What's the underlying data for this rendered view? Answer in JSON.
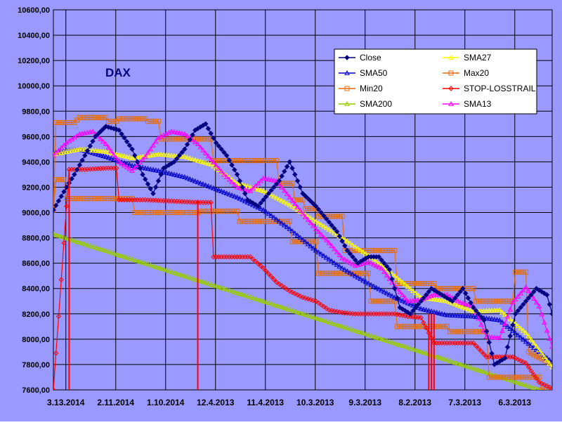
{
  "chart_data": {
    "type": "line",
    "title": "DAX",
    "xlabel": "",
    "ylabel": "",
    "ylim": [
      7600,
      10600
    ],
    "y_ticks": [
      "10600,00",
      "10400,00",
      "10200,00",
      "10000,00",
      "9800,00",
      "9600,00",
      "9400,00",
      "9200,00",
      "9000,00",
      "8800,00",
      "8600,00",
      "8400,00",
      "8200,00",
      "8000,00",
      "7800,00",
      "7600,00"
    ],
    "x_ticks": [
      "3.13.2014",
      "2.11.2014",
      "1.10.2014",
      "12.4.2013",
      "11.4.2013",
      "10.3.2013",
      "9.3.2013",
      "8.2.2013",
      "7.3.2013",
      "6.3.2013"
    ],
    "x_axis_note": "x axis runs from newest (left) to oldest (right); about 190 trading days",
    "grid": true,
    "legend_position": "top-right",
    "colors": {
      "plot_bg": "#9999ff",
      "frame_bg": "#9999ff",
      "grid": "#000000",
      "Close": "#000080",
      "SMA27": "#ffff00",
      "SMA50": "#0000cc",
      "Max20": "#e46c0a",
      "Min20": "#e46c0a",
      "STOP-LOSSTRAIL": "#ff0000",
      "SMA200": "#99cc00",
      "SMA13": "#ff00ff"
    },
    "series": [
      {
        "name": "Close",
        "marker": "diamond",
        "x": [
          0,
          5,
          8,
          12,
          16,
          20,
          25,
          30,
          34,
          38,
          42,
          46,
          50,
          54,
          58,
          62,
          66,
          70,
          74,
          78,
          82,
          86,
          90,
          95,
          100,
          104,
          108,
          112,
          116,
          120,
          124,
          128,
          132,
          136,
          140,
          144,
          148,
          152,
          156,
          160,
          164,
          168,
          172,
          176,
          180,
          184,
          188,
          190
        ],
        "y": [
          9020,
          9200,
          9300,
          9450,
          9600,
          9680,
          9650,
          9500,
          9300,
          9150,
          9350,
          9400,
          9500,
          9650,
          9700,
          9550,
          9450,
          9300,
          9100,
          9050,
          9150,
          9250,
          9400,
          9150,
          9050,
          8950,
          8850,
          8700,
          8600,
          8650,
          8650,
          8550,
          8250,
          8200,
          8300,
          8400,
          8350,
          8300,
          8400,
          8250,
          8150,
          7800,
          7850,
          8200,
          8300,
          8400,
          8350,
          8200
        ]
      },
      {
        "name": "SMA27",
        "marker": "triangle",
        "x": [
          0,
          10,
          20,
          30,
          40,
          50,
          60,
          70,
          80,
          90,
          100,
          110,
          120,
          130,
          140,
          150,
          160,
          170,
          180,
          190
        ],
        "y": [
          9460,
          9500,
          9480,
          9430,
          9460,
          9440,
          9380,
          9230,
          9170,
          9060,
          8930,
          8800,
          8660,
          8500,
          8330,
          8300,
          8220,
          8230,
          8050,
          7780
        ]
      },
      {
        "name": "SMA50",
        "marker": "triangle",
        "x": [
          0,
          10,
          20,
          30,
          40,
          50,
          60,
          70,
          80,
          90,
          100,
          110,
          120,
          130,
          140,
          150,
          160,
          170,
          180,
          190
        ],
        "y": [
          9470,
          9500,
          9440,
          9370,
          9330,
          9280,
          9200,
          9120,
          9020,
          8870,
          8700,
          8560,
          8440,
          8330,
          8240,
          8190,
          8180,
          8150,
          7980,
          7820
        ]
      },
      {
        "name": "Max20",
        "marker": "square",
        "x": [
          0,
          1,
          8,
          9,
          10,
          20,
          21,
          24,
          25,
          35,
          36,
          40,
          41,
          60,
          61,
          85,
          86,
          91,
          92,
          95,
          96,
          100,
          101,
          110,
          111,
          130,
          131,
          145,
          146,
          160,
          161,
          175,
          176,
          180,
          181,
          190
        ],
        "y": [
          9020,
          9710,
          9710,
          9730,
          9750,
          9750,
          9720,
          9720,
          9740,
          9740,
          9720,
          9720,
          9580,
          9580,
          9410,
          9410,
          9230,
          9230,
          9100,
          9100,
          9030,
          9030,
          8970,
          8970,
          8700,
          8700,
          8440,
          8440,
          8400,
          8400,
          8300,
          8300,
          8530,
          8530,
          7900,
          7800
        ]
      },
      {
        "name": "Min20",
        "marker": "square",
        "x": [
          0,
          1,
          4,
          5,
          10,
          11,
          30,
          31,
          55,
          56,
          70,
          71,
          90,
          91,
          100,
          101,
          120,
          121,
          130,
          131,
          150,
          151,
          165,
          166,
          185,
          186,
          190
        ],
        "y": [
          9020,
          9260,
          9260,
          9110,
          9110,
          9110,
          9110,
          9000,
          9000,
          9010,
          9010,
          8930,
          8930,
          8770,
          8770,
          8520,
          8520,
          8300,
          8300,
          8100,
          8100,
          8060,
          8060,
          7700,
          7700,
          7600,
          7600
        ]
      },
      {
        "name": "STOP-LOSSTRAIL",
        "marker": "diamond",
        "x": [
          0,
          6,
          12,
          20,
          24,
          25,
          35,
          55,
          60,
          61,
          75,
          80,
          85,
          90,
          95,
          100,
          105,
          110,
          115,
          120,
          125,
          130,
          135,
          140,
          145,
          150,
          155,
          160,
          165,
          170,
          175,
          180,
          185,
          190
        ],
        "y": [
          7600,
          9340,
          9340,
          9350,
          9350,
          9100,
          9100,
          9080,
          9080,
          8650,
          8650,
          8560,
          8450,
          8380,
          8330,
          8300,
          8230,
          8210,
          8200,
          8200,
          8200,
          8200,
          8180,
          8170,
          7970,
          7970,
          7970,
          7970,
          7860,
          7860,
          7860,
          7810,
          7660,
          7610
        ]
      },
      {
        "name": "SMA200",
        "marker": "triangle",
        "x": [
          0,
          190
        ],
        "y": [
          8830,
          7570
        ]
      },
      {
        "name": "SMA13",
        "marker": "triangle",
        "x": [
          0,
          5,
          10,
          15,
          20,
          25,
          30,
          35,
          40,
          45,
          50,
          55,
          60,
          65,
          70,
          75,
          80,
          85,
          90,
          95,
          100,
          105,
          110,
          115,
          120,
          125,
          130,
          135,
          140,
          145,
          150,
          155,
          160,
          165,
          170,
          175,
          180,
          185,
          190
        ],
        "y": [
          9450,
          9550,
          9620,
          9640,
          9540,
          9400,
          9330,
          9440,
          9590,
          9640,
          9620,
          9540,
          9420,
          9300,
          9200,
          9170,
          9270,
          9250,
          9120,
          8990,
          8870,
          8760,
          8640,
          8580,
          8610,
          8560,
          8420,
          8300,
          8310,
          8350,
          8350,
          8290,
          8260,
          8020,
          8010,
          8290,
          8410,
          8260,
          7940
        ]
      }
    ]
  }
}
